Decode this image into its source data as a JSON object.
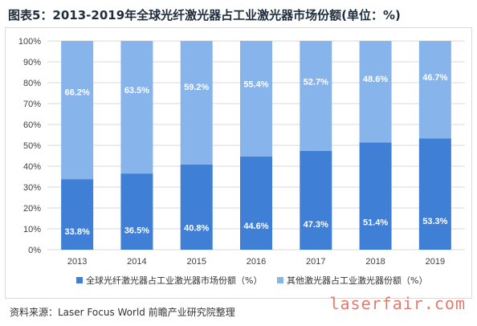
{
  "title": "图表5：2013-2019年全球光纤激光器占工业激光器市场份额(单位：%)",
  "source": "资料来源：Laser Focus World 前瞻产业研究院整理",
  "watermark_site": "laserfair.com",
  "colors": {
    "fiber": "#3f7fd6",
    "other": "#88b4ec",
    "grid": "#d9d9d9",
    "axis_text": "#404040",
    "label_text": "#ffffff"
  },
  "chart_data": {
    "type": "bar",
    "stacked": true,
    "percent": true,
    "categories": [
      "2013",
      "2014",
      "2015",
      "2016",
      "2017",
      "2018",
      "2019"
    ],
    "series": [
      {
        "name": "全球光纤激光器占工业激光器市场份额（%）",
        "values": [
          33.8,
          36.5,
          40.8,
          44.6,
          47.3,
          51.4,
          53.3
        ],
        "labels": [
          "33.8%",
          "36.5%",
          "40.8%",
          "44.6%",
          "47.3%",
          "51.4%",
          "53.3%"
        ]
      },
      {
        "name": "其他激光器占工业激光器份额（%）",
        "values": [
          66.2,
          63.5,
          59.2,
          55.4,
          52.7,
          48.6,
          46.7
        ],
        "labels": [
          "66.2%",
          "63.5%",
          "59.2%",
          "55.4%",
          "52.7%",
          "48.6%",
          "46.7%"
        ]
      }
    ],
    "ylim": [
      0,
      100
    ],
    "yticks": [
      "0%",
      "10%",
      "20%",
      "30%",
      "40%",
      "50%",
      "60%",
      "70%",
      "80%",
      "90%",
      "100%"
    ],
    "grid": true,
    "legend": "bottom"
  }
}
